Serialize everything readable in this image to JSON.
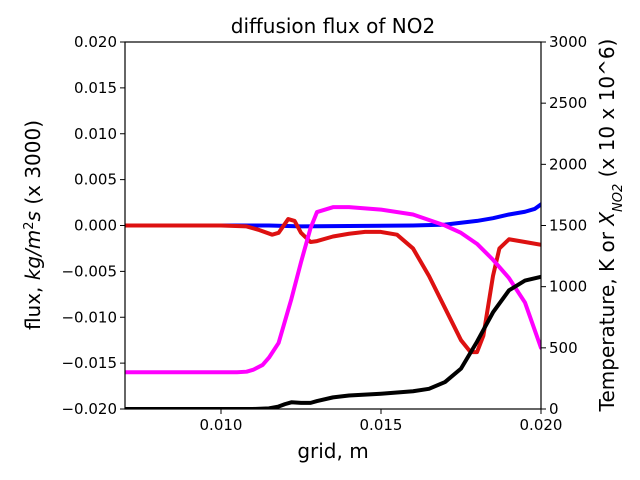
{
  "chart_data": {
    "type": "line",
    "title": "diffusion flux of NO2",
    "xlabel": "grid, m",
    "ylabel_left": {
      "prefix": "flux, ",
      "italic_unit": "kg/m",
      "superscript": "2",
      "italic_s": "s",
      "suffix": " (x 3000)"
    },
    "ylabel_right": {
      "prefix": "Temperature, K or ",
      "italic_x": "X",
      "subscript": "NO2",
      "suffix": " (x 10 x 10^6)"
    },
    "xlim": [
      0.007,
      0.02
    ],
    "ylim_left": [
      -0.02,
      0.02
    ],
    "ylim_right": [
      0,
      3000
    ],
    "x_ticks": [
      {
        "value": 0.01,
        "label": "0.010"
      },
      {
        "value": 0.015,
        "label": "0.015"
      },
      {
        "value": 0.02,
        "label": "0.020"
      }
    ],
    "y_ticks_left": [
      {
        "value": 0.02,
        "label": "0.020"
      },
      {
        "value": 0.015,
        "label": "0.015"
      },
      {
        "value": 0.01,
        "label": "0.010"
      },
      {
        "value": 0.005,
        "label": "0.005"
      },
      {
        "value": 0.0,
        "label": "0.000"
      },
      {
        "value": -0.005,
        "label": "−0.005"
      },
      {
        "value": -0.01,
        "label": "−0.010"
      },
      {
        "value": -0.015,
        "label": "−0.015"
      },
      {
        "value": -0.02,
        "label": "−0.020"
      }
    ],
    "y_ticks_right": [
      {
        "value": 3000,
        "label": "3000"
      },
      {
        "value": 2500,
        "label": "2500"
      },
      {
        "value": 2000,
        "label": "2000"
      },
      {
        "value": 1500,
        "label": "1500"
      },
      {
        "value": 1000,
        "label": "1000"
      },
      {
        "value": 500,
        "label": "500"
      },
      {
        "value": 0,
        "label": "0"
      }
    ],
    "grid": false,
    "series": [
      {
        "color": "#0000ff",
        "axis": "left",
        "x": [
          0.007,
          0.01,
          0.0115,
          0.0125,
          0.014,
          0.016,
          0.017,
          0.0175,
          0.018,
          0.0185,
          0.019,
          0.0195,
          0.0198,
          0.02
        ],
        "y": [
          0.0,
          0.0,
          0.0,
          -0.0001,
          -5e-05,
          0.0,
          0.0001,
          0.0003,
          0.0005,
          0.0008,
          0.0012,
          0.0015,
          0.0018,
          0.0023
        ]
      },
      {
        "color": "#dd1111",
        "axis": "left",
        "x": [
          0.007,
          0.01,
          0.0108,
          0.0112,
          0.0116,
          0.0118,
          0.0121,
          0.0123,
          0.0125,
          0.0128,
          0.013,
          0.0135,
          0.014,
          0.0145,
          0.015,
          0.0155,
          0.016,
          0.0165,
          0.017,
          0.0175,
          0.0178,
          0.018,
          0.0182,
          0.0185,
          0.0187,
          0.019,
          0.0195,
          0.02
        ],
        "y": [
          0.0,
          0.0,
          -0.0001,
          -0.0005,
          -0.001,
          -0.0008,
          0.0007,
          0.0005,
          -0.0008,
          -0.0018,
          -0.0017,
          -0.0012,
          -0.0009,
          -0.0007,
          -0.0007,
          -0.001,
          -0.0025,
          -0.0055,
          -0.009,
          -0.0125,
          -0.0138,
          -0.0138,
          -0.012,
          -0.0055,
          -0.0025,
          -0.0015,
          -0.0018,
          -0.0021
        ]
      },
      {
        "color": "#ff00ff",
        "axis": "right",
        "x": [
          0.007,
          0.0095,
          0.0105,
          0.0108,
          0.011,
          0.0113,
          0.0115,
          0.0118,
          0.012,
          0.0122,
          0.0125,
          0.0128,
          0.013,
          0.0135,
          0.014,
          0.015,
          0.016,
          0.017,
          0.0175,
          0.018,
          0.0185,
          0.019,
          0.0195,
          0.02
        ],
        "y": [
          300,
          300,
          300,
          305,
          320,
          360,
          420,
          540,
          720,
          900,
          1200,
          1480,
          1610,
          1650,
          1650,
          1630,
          1590,
          1500,
          1440,
          1350,
          1220,
          1070,
          870,
          500
        ]
      },
      {
        "color": "#000000",
        "axis": "right",
        "x": [
          0.007,
          0.011,
          0.0115,
          0.0118,
          0.012,
          0.0122,
          0.0125,
          0.0128,
          0.013,
          0.0135,
          0.014,
          0.015,
          0.016,
          0.0165,
          0.017,
          0.0175,
          0.018,
          0.0185,
          0.019,
          0.0195,
          0.02
        ],
        "y": [
          0,
          0,
          5,
          20,
          40,
          55,
          50,
          50,
          65,
          95,
          110,
          125,
          145,
          165,
          220,
          330,
          550,
          790,
          970,
          1050,
          1080
        ]
      }
    ]
  }
}
